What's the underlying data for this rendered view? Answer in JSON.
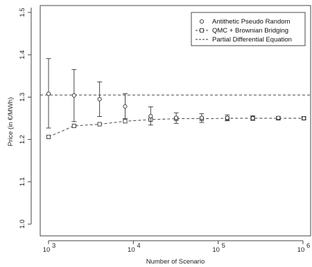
{
  "chart_data": {
    "type": "line",
    "title": "",
    "xlabel": "Number of Scenario",
    "ylabel": "Price (in €/MWh)",
    "x_scale": "log10",
    "xlim": [
      1000,
      1000000
    ],
    "ylim": [
      1.0,
      1.5
    ],
    "y_ticks": [
      1.0,
      1.1,
      1.2,
      1.3,
      1.4,
      1.5
    ],
    "y_tick_labels": [
      "1.0",
      "1.1",
      "1.2",
      "1.3",
      "1.4",
      "1.5"
    ],
    "x_ticks": [
      1000,
      10000,
      100000,
      1000000
    ],
    "x_tick_labels": [
      {
        "base": "10",
        "exp": "3"
      },
      {
        "base": "10",
        "exp": "4"
      },
      {
        "base": "10",
        "exp": "5"
      },
      {
        "base": "10",
        "exp": "6"
      }
    ],
    "grid": false,
    "legend_position": "top-right",
    "legend": [
      {
        "label": "Antithetic Pseudo Random",
        "marker": "circle",
        "line": "none"
      },
      {
        "label": "QMC + Brownian Bridging",
        "marker": "square",
        "line": "dashed"
      },
      {
        "label": "Partial Differential Equation",
        "marker": "none",
        "line": "dashed"
      }
    ],
    "series": [
      {
        "name": "Antithetic Pseudo Random",
        "marker": "circle",
        "x": [
          1000,
          2000,
          4000,
          8000,
          16000,
          32000,
          64000,
          128000,
          256000,
          512000,
          1024000
        ],
        "y": [
          1.308,
          1.304,
          1.295,
          1.278,
          1.255,
          1.251,
          1.251,
          1.251,
          1.25,
          1.251,
          1.25
        ],
        "err_low": [
          1.227,
          1.242,
          1.254,
          1.249,
          1.234,
          1.238,
          1.24,
          1.244,
          1.245,
          1.247,
          1.247
        ],
        "err_high": [
          1.391,
          1.365,
          1.336,
          1.308,
          1.277,
          1.263,
          1.261,
          1.258,
          1.256,
          1.254,
          1.253
        ]
      },
      {
        "name": "QMC + Brownian Bridging",
        "marker": "square",
        "x": [
          1000,
          2000,
          4000,
          8000,
          16000,
          32000,
          64000,
          128000,
          256000,
          512000,
          1024000
        ],
        "y": [
          1.206,
          1.232,
          1.236,
          1.243,
          1.247,
          1.249,
          1.249,
          1.25,
          1.25,
          1.25,
          1.25
        ]
      },
      {
        "name": "Partial Differential Equation",
        "type": "hline",
        "y": 1.305
      }
    ]
  }
}
